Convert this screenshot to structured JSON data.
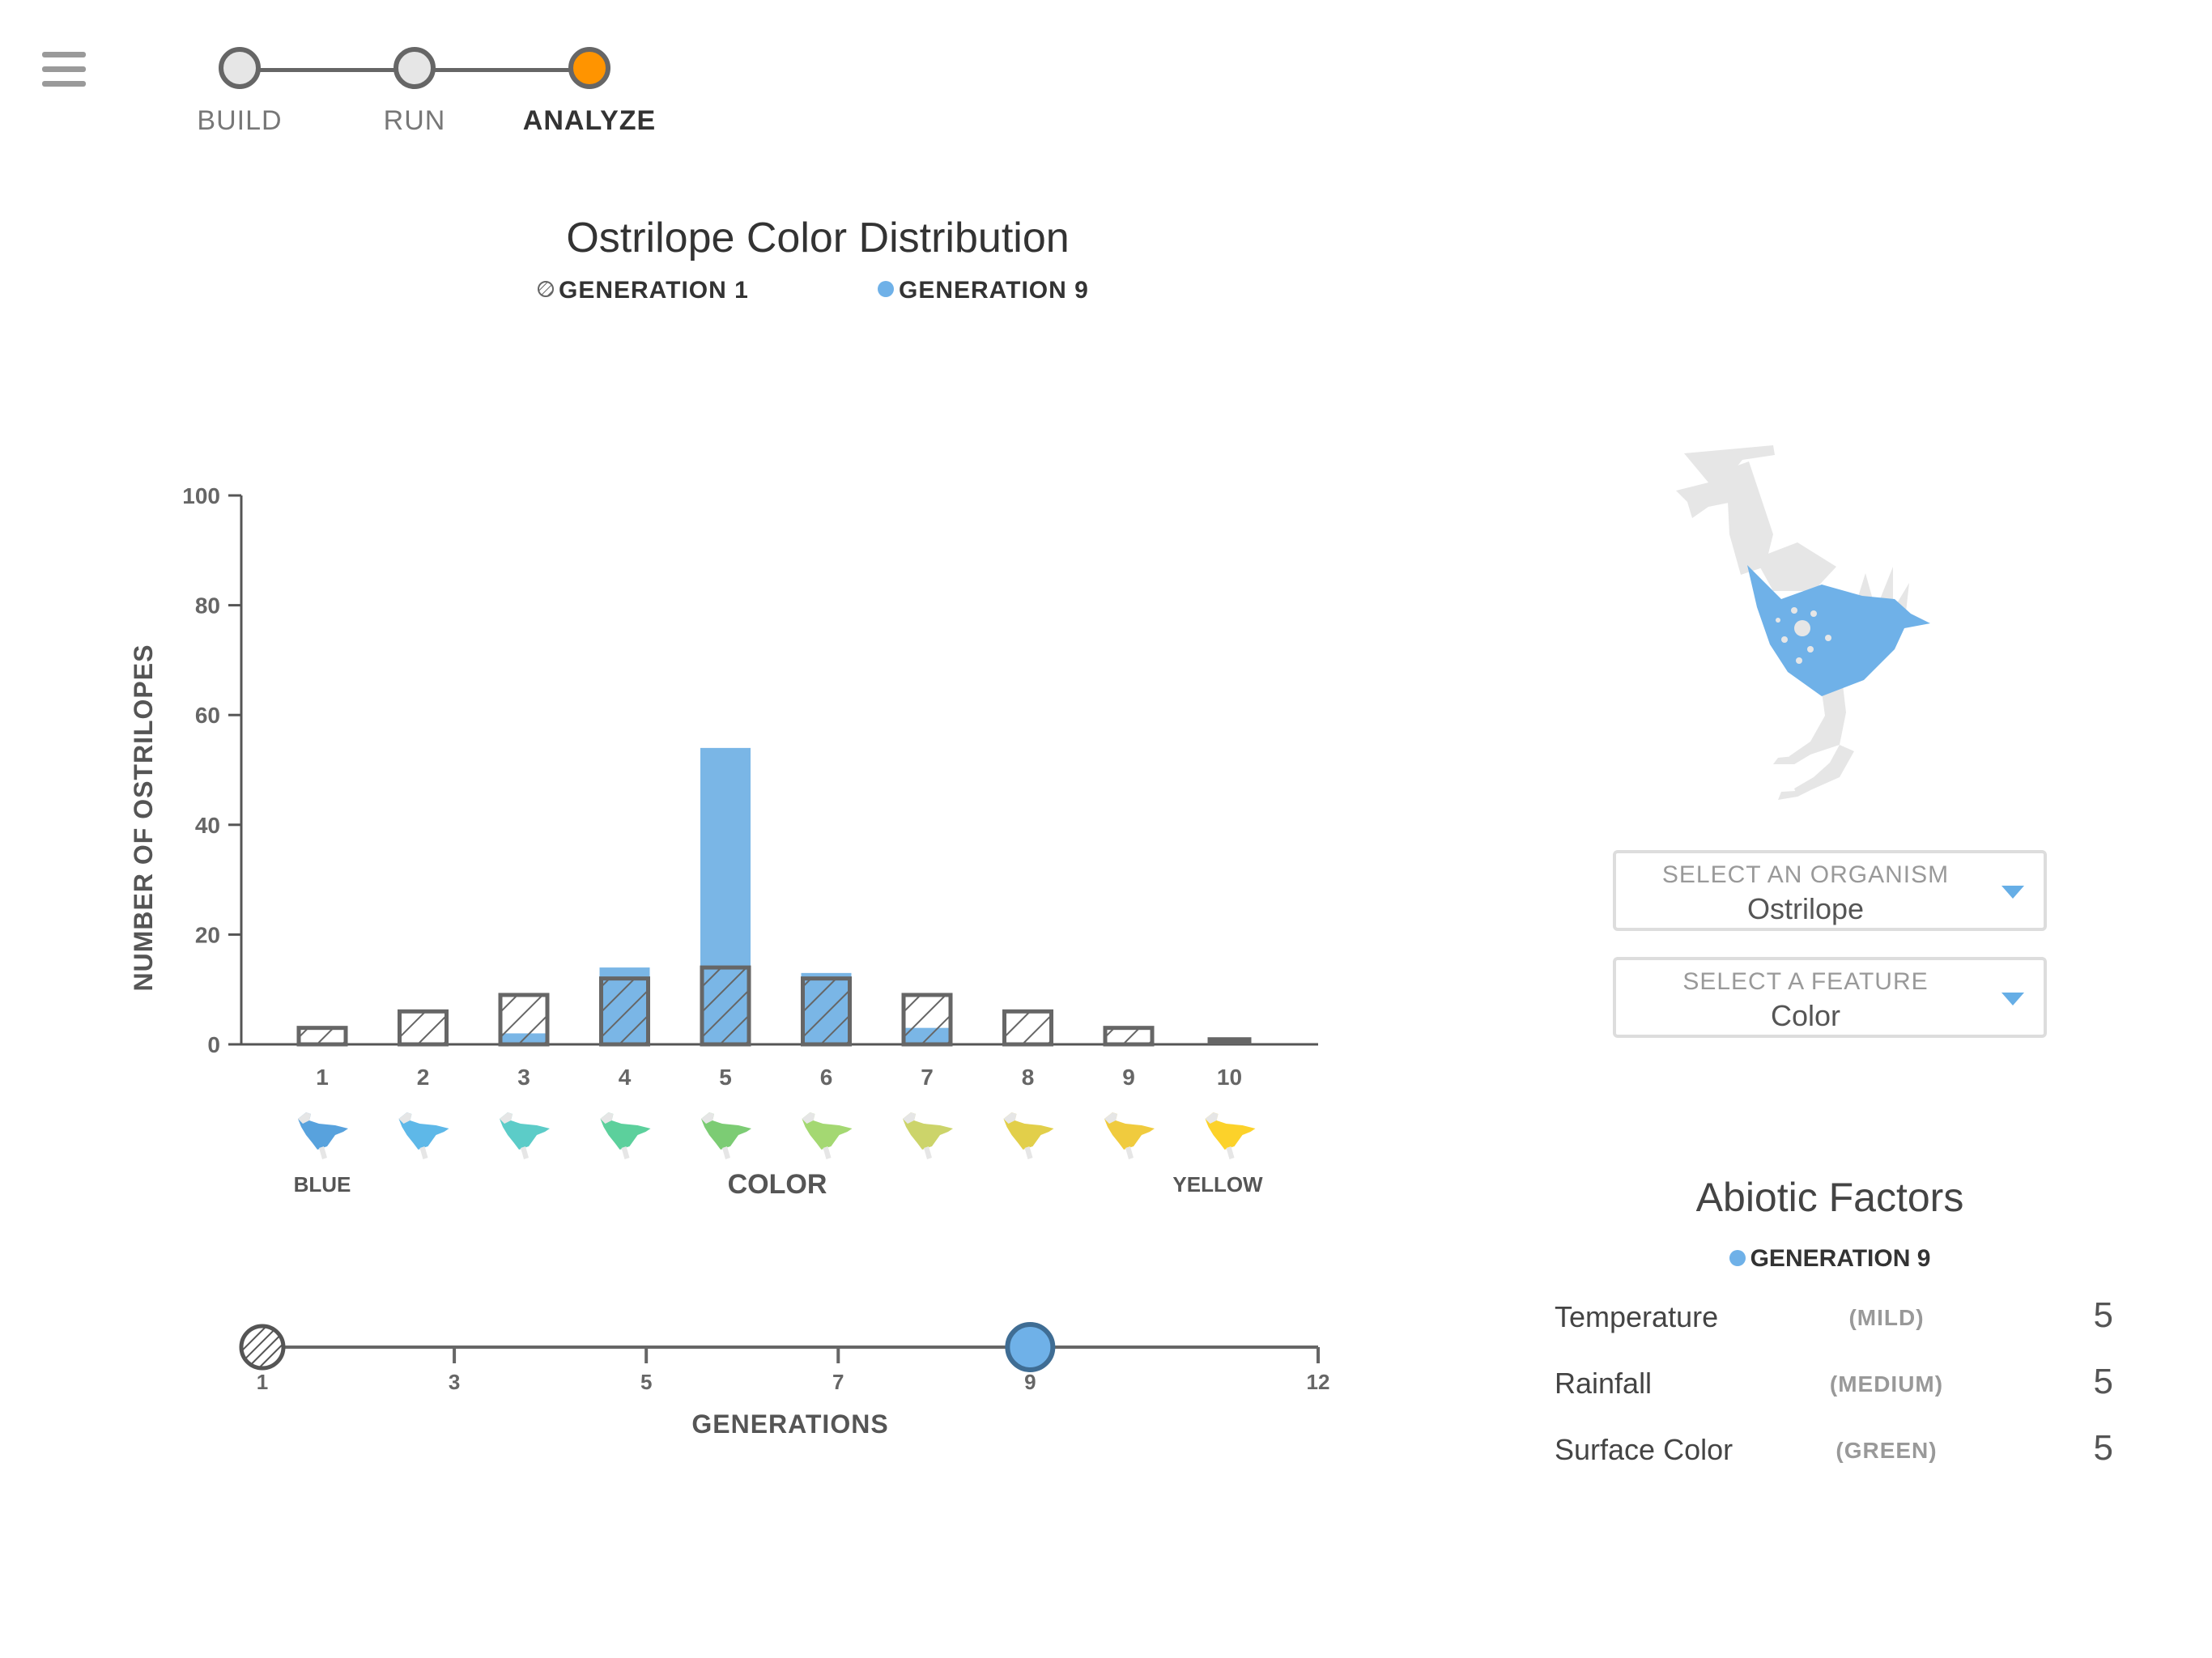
{
  "stepper": {
    "steps": [
      {
        "label": "BUILD",
        "active": false
      },
      {
        "label": "RUN",
        "active": false
      },
      {
        "label": "ANALYZE",
        "active": true
      }
    ],
    "active_color": "#ff9400"
  },
  "chart_data": {
    "type": "bar",
    "title": "Ostrilope Color Distribution",
    "xlabel": "COLOR",
    "ylabel": "NUMBER OF OSTRILOPES",
    "ylim": [
      0,
      100
    ],
    "yticks": [
      0,
      20,
      40,
      60,
      80,
      100
    ],
    "categories": [
      "1",
      "2",
      "3",
      "4",
      "5",
      "6",
      "7",
      "8",
      "9",
      "10"
    ],
    "series": [
      {
        "name": "GENERATION 1",
        "pattern": "hatched",
        "color": "#777777",
        "values": [
          3,
          6,
          9,
          12,
          14,
          12,
          9,
          6,
          3,
          1
        ]
      },
      {
        "name": "GENERATION 9",
        "pattern": "solid",
        "color": "#7ab6e6",
        "values": [
          0,
          0,
          2,
          14,
          54,
          13,
          3,
          0,
          0,
          0
        ]
      }
    ],
    "x_end_labels": {
      "left": "BLUE",
      "right": "YELLOW"
    },
    "swatch_colors": [
      "#58a2dd",
      "#5eb8e8",
      "#5cccc8",
      "#5cd09c",
      "#7ccc74",
      "#a4d872",
      "#ccd46a",
      "#e2cf4a",
      "#f0cb3e",
      "#fcd22a"
    ],
    "grid": false
  },
  "generation_slider": {
    "label": "GENERATIONS",
    "min": 1,
    "max": 12,
    "ticks": [
      "1",
      "3",
      "5",
      "7",
      "9",
      "12"
    ],
    "tick_values": [
      1,
      3,
      5,
      7,
      9,
      12
    ],
    "start_value": 1,
    "selected_value": 9
  },
  "selectors": {
    "organism": {
      "label": "SELECT AN ORGANISM",
      "value": "Ostrilope"
    },
    "feature": {
      "label": "SELECT A FEATURE",
      "value": "Color"
    }
  },
  "organism_color": "#6fb1e8",
  "abiotic": {
    "title": "Abiotic Factors",
    "legend": "GENERATION 9",
    "factors": [
      {
        "name": "Temperature",
        "level": "(MILD)",
        "value": "5"
      },
      {
        "name": "Rainfall",
        "level": "(MEDIUM)",
        "value": "5"
      },
      {
        "name": "Surface Color",
        "level": "(GREEN)",
        "value": "5"
      }
    ]
  }
}
